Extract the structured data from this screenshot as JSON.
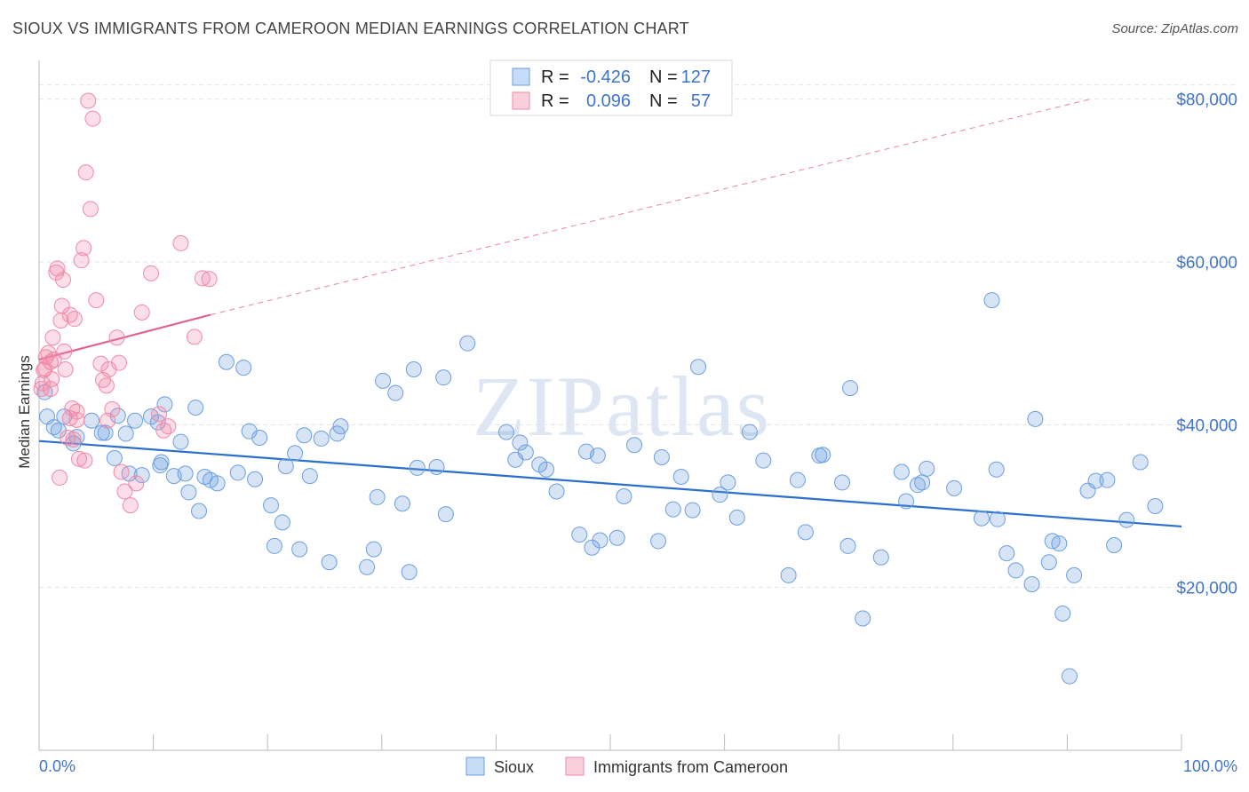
{
  "header": {
    "title": "SIOUX VS IMMIGRANTS FROM CAMEROON MEDIAN EARNINGS CORRELATION CHART",
    "source": "Source: ZipAtlas.com"
  },
  "watermark": "ZIPatlas",
  "colors": {
    "sioux": "#6b9fe0",
    "sioux_line": "#2a6fcb",
    "cameroon": "#f08aa9",
    "cameroon_line": "#e0668f",
    "tick_text": "#3f74c9"
  },
  "stats": {
    "sioux": {
      "r_label": "R =",
      "r": "-0.426",
      "n_label": "N =",
      "n": "127"
    },
    "cameroon": {
      "r_label": "R =",
      "r": "0.096",
      "n_label": "N =",
      "n": "57"
    }
  },
  "chart_data": {
    "type": "scatter",
    "ylabel": "Median Earnings",
    "xlim": [
      0,
      100
    ],
    "ylim": [
      0,
      84000
    ],
    "x_tick_labels": [
      "0.0%",
      "100.0%"
    ],
    "y_ticks": [
      20000,
      40000,
      60000,
      80000
    ],
    "y_tick_labels": [
      "$20,000",
      "$40,000",
      "$60,000",
      "$80,000"
    ],
    "grid": true,
    "legend_position": "bottom",
    "series": [
      {
        "name": "Sioux",
        "trend": {
          "x": [
            0,
            100
          ],
          "y": [
            38000,
            27500
          ],
          "style": "solid"
        },
        "points": [
          [
            0.5,
            44000
          ],
          [
            0.7,
            41000
          ],
          [
            1.3,
            39700
          ],
          [
            1.7,
            39300
          ],
          [
            2.2,
            41000
          ],
          [
            3.3,
            38500
          ],
          [
            3.0,
            37700
          ],
          [
            4.6,
            40500
          ],
          [
            5.5,
            39000
          ],
          [
            5.8,
            39000
          ],
          [
            6.6,
            35900
          ],
          [
            6.9,
            41100
          ],
          [
            7.6,
            38900
          ],
          [
            7.9,
            34000
          ],
          [
            8.4,
            40500
          ],
          [
            9.0,
            33800
          ],
          [
            9.8,
            41000
          ],
          [
            10.4,
            40300
          ],
          [
            10.6,
            35000
          ],
          [
            10.7,
            35400
          ],
          [
            11.0,
            42500
          ],
          [
            11.8,
            33700
          ],
          [
            12.4,
            37900
          ],
          [
            12.8,
            34000
          ],
          [
            13.1,
            31700
          ],
          [
            13.7,
            42100
          ],
          [
            14.0,
            29400
          ],
          [
            14.5,
            33600
          ],
          [
            15.0,
            33200
          ],
          [
            15.6,
            32800
          ],
          [
            16.4,
            47700
          ],
          [
            17.4,
            34100
          ],
          [
            17.9,
            47000
          ],
          [
            18.4,
            39200
          ],
          [
            18.9,
            33300
          ],
          [
            19.3,
            38400
          ],
          [
            20.3,
            30100
          ],
          [
            20.6,
            25100
          ],
          [
            21.3,
            28000
          ],
          [
            21.6,
            34900
          ],
          [
            22.4,
            36500
          ],
          [
            22.8,
            24700
          ],
          [
            23.2,
            38700
          ],
          [
            23.7,
            33700
          ],
          [
            24.7,
            38300
          ],
          [
            25.4,
            23100
          ],
          [
            26.1,
            38900
          ],
          [
            26.4,
            39800
          ],
          [
            28.7,
            22500
          ],
          [
            29.3,
            24700
          ],
          [
            29.6,
            31100
          ],
          [
            30.1,
            45400
          ],
          [
            31.2,
            43900
          ],
          [
            31.8,
            30300
          ],
          [
            32.4,
            21900
          ],
          [
            32.8,
            46800
          ],
          [
            33.1,
            34700
          ],
          [
            34.8,
            34800
          ],
          [
            35.4,
            45800
          ],
          [
            35.6,
            29000
          ],
          [
            37.5,
            50000
          ],
          [
            40.9,
            39100
          ],
          [
            41.7,
            35700
          ],
          [
            42.1,
            37800
          ],
          [
            42.6,
            36600
          ],
          [
            43.8,
            35100
          ],
          [
            44.4,
            34500
          ],
          [
            45.3,
            31800
          ],
          [
            47.3,
            26500
          ],
          [
            47.9,
            36700
          ],
          [
            48.4,
            24900
          ],
          [
            48.9,
            36200
          ],
          [
            49.1,
            25800
          ],
          [
            50.6,
            26100
          ],
          [
            51.2,
            31200
          ],
          [
            52.1,
            37500
          ],
          [
            54.2,
            25700
          ],
          [
            54.5,
            36000
          ],
          [
            55.5,
            29600
          ],
          [
            56.2,
            33600
          ],
          [
            57.2,
            29500
          ],
          [
            57.7,
            47100
          ],
          [
            59.6,
            31400
          ],
          [
            60.3,
            32900
          ],
          [
            61.1,
            28600
          ],
          [
            62.2,
            39100
          ],
          [
            63.4,
            35600
          ],
          [
            65.6,
            21500
          ],
          [
            66.4,
            33200
          ],
          [
            67.1,
            26800
          ],
          [
            68.3,
            36200
          ],
          [
            68.6,
            36300
          ],
          [
            70.3,
            32900
          ],
          [
            70.8,
            25100
          ],
          [
            71.0,
            44500
          ],
          [
            72.1,
            16200
          ],
          [
            73.7,
            23700
          ],
          [
            75.5,
            34200
          ],
          [
            75.9,
            30600
          ],
          [
            76.9,
            32600
          ],
          [
            77.3,
            32900
          ],
          [
            77.7,
            34600
          ],
          [
            80.1,
            32200
          ],
          [
            82.5,
            28500
          ],
          [
            83.4,
            55300
          ],
          [
            83.8,
            34500
          ],
          [
            83.9,
            28400
          ],
          [
            84.7,
            24200
          ],
          [
            85.5,
            22100
          ],
          [
            86.9,
            20400
          ],
          [
            87.2,
            40700
          ],
          [
            88.4,
            23100
          ],
          [
            88.7,
            25700
          ],
          [
            89.3,
            25400
          ],
          [
            89.6,
            16800
          ],
          [
            90.2,
            9100
          ],
          [
            90.6,
            21500
          ],
          [
            91.8,
            31900
          ],
          [
            92.5,
            33100
          ],
          [
            93.5,
            33200
          ],
          [
            94.1,
            25200
          ],
          [
            95.2,
            28300
          ],
          [
            96.4,
            35400
          ],
          [
            97.7,
            30000
          ]
        ]
      },
      {
        "name": "Immigrants from Cameroon",
        "trend": {
          "x": [
            0,
            15
          ],
          "y": [
            48000,
            53500
          ],
          "style": "solid",
          "extension": {
            "x": [
              15,
              92
            ],
            "y": [
              53500,
              80000
            ],
            "style": "dashed"
          }
        },
        "points": [
          [
            0.2,
            44400
          ],
          [
            0.3,
            45100
          ],
          [
            0.4,
            46700
          ],
          [
            0.6,
            48300
          ],
          [
            0.8,
            48800
          ],
          [
            1.0,
            44400
          ],
          [
            1.0,
            47700
          ],
          [
            1.2,
            50700
          ],
          [
            1.5,
            58700
          ],
          [
            1.6,
            59200
          ],
          [
            1.9,
            52800
          ],
          [
            2.0,
            54600
          ],
          [
            2.1,
            57800
          ],
          [
            2.2,
            49000
          ],
          [
            2.5,
            38400
          ],
          [
            2.7,
            40800
          ],
          [
            2.9,
            42000
          ],
          [
            3.0,
            38200
          ],
          [
            3.1,
            53000
          ],
          [
            3.3,
            41600
          ],
          [
            3.5,
            35800
          ],
          [
            3.7,
            60200
          ],
          [
            3.9,
            61700
          ],
          [
            4.1,
            71000
          ],
          [
            4.3,
            79800
          ],
          [
            4.5,
            66500
          ],
          [
            4.7,
            77600
          ],
          [
            5.0,
            55300
          ],
          [
            5.4,
            47500
          ],
          [
            5.6,
            45500
          ],
          [
            5.9,
            44800
          ],
          [
            6.1,
            46800
          ],
          [
            6.4,
            41900
          ],
          [
            6.8,
            50700
          ],
          [
            7.0,
            47600
          ],
          [
            7.2,
            34200
          ],
          [
            7.5,
            31800
          ],
          [
            8.0,
            30100
          ],
          [
            8.5,
            32800
          ],
          [
            9.0,
            53800
          ],
          [
            9.8,
            58600
          ],
          [
            10.5,
            41300
          ],
          [
            10.9,
            39300
          ],
          [
            11.3,
            39800
          ],
          [
            12.4,
            62300
          ],
          [
            13.6,
            50800
          ],
          [
            14.3,
            58000
          ],
          [
            14.9,
            57900
          ],
          [
            0.5,
            46900
          ],
          [
            1.1,
            45600
          ],
          [
            1.3,
            48000
          ],
          [
            1.8,
            33500
          ],
          [
            2.3,
            46800
          ],
          [
            2.7,
            53500
          ],
          [
            3.3,
            40600
          ],
          [
            4.0,
            35600
          ],
          [
            6.0,
            40500
          ]
        ]
      }
    ]
  }
}
